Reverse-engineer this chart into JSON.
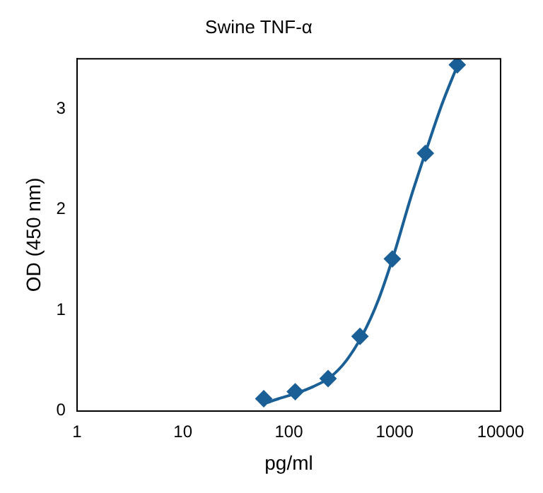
{
  "chart_data": {
    "type": "scatter",
    "title": "Swine TNF-α",
    "xlabel": "pg/ml",
    "ylabel": "OD (450 nm)",
    "log": "x",
    "xlim": [
      1,
      10000
    ],
    "xticks": [
      1,
      10,
      100,
      1000,
      10000
    ],
    "ylim": [
      0,
      3.5
    ],
    "yticks": [
      0,
      1,
      2,
      3
    ],
    "grid": false,
    "legend": false,
    "marker": "diamond",
    "series": [
      {
        "type": "line",
        "color": "#1a5f96",
        "marker": "none",
        "x": [
          62,
          80,
          115,
          170,
          250,
          350,
          500,
          700,
          1000,
          1400,
          2000,
          2800,
          3900
        ],
        "values": [
          0.08,
          0.12,
          0.17,
          0.24,
          0.34,
          0.5,
          0.76,
          1.1,
          1.58,
          2.1,
          2.6,
          3.05,
          3.43
        ]
      },
      {
        "type": "scatter",
        "color": "#1a5f96",
        "x": [
          58,
          115,
          235,
          470,
          950,
          1950,
          3900
        ],
        "values": [
          0.12,
          0.19,
          0.32,
          0.74,
          1.51,
          2.56,
          3.44
        ]
      }
    ]
  }
}
